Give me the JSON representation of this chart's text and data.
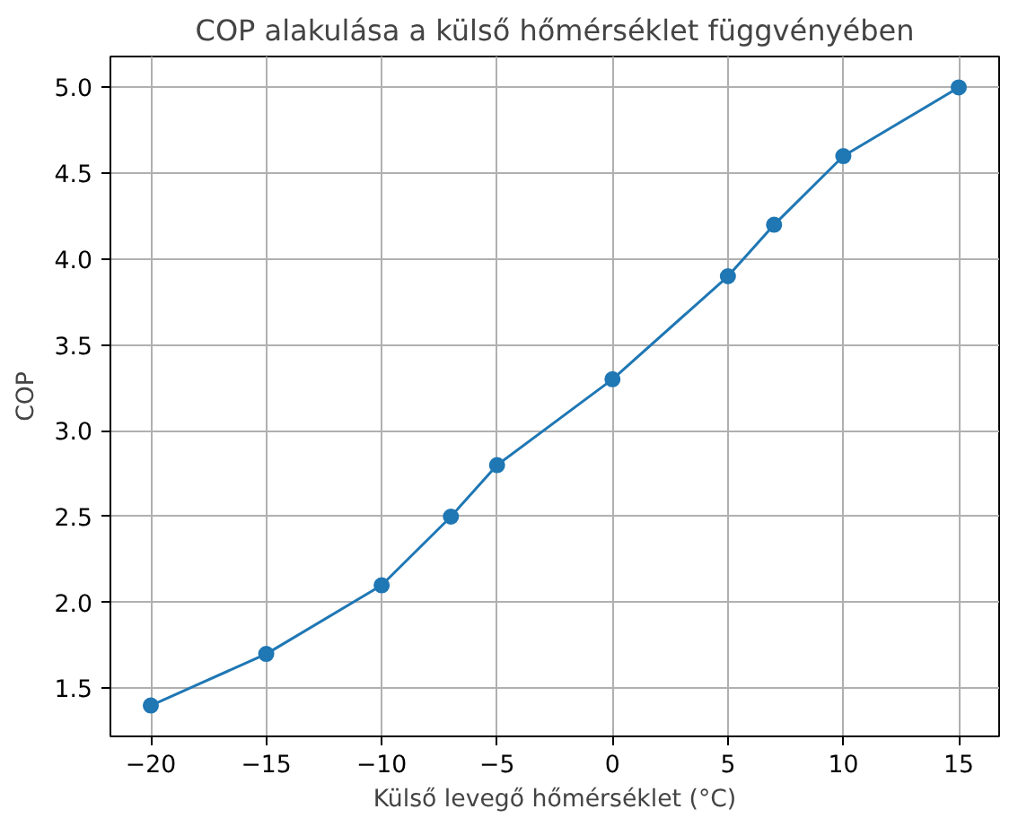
{
  "chart_data": {
    "type": "line",
    "title": "COP alakulása a külső hőmérséklet függvényében",
    "xlabel": "Külső levegő hőmérséklet (°C)",
    "ylabel": "COP",
    "x": [
      -20,
      -15,
      -10,
      -7,
      -5,
      0,
      5,
      7,
      10,
      15
    ],
    "series": [
      {
        "color": "#1f77b4",
        "values": [
          1.4,
          1.7,
          2.1,
          2.5,
          2.8,
          3.3,
          3.9,
          4.2,
          4.6,
          5.0
        ]
      }
    ],
    "xlim": [
      -21.75,
      16.75
    ],
    "ylim": [
      1.22,
      5.18
    ],
    "xticks": [
      {
        "value": -20,
        "label": "−20"
      },
      {
        "value": -15,
        "label": "−15"
      },
      {
        "value": -10,
        "label": "−10"
      },
      {
        "value": -5,
        "label": "−5"
      },
      0,
      5,
      10,
      15
    ],
    "yticks": [
      1.5,
      {
        "value": 2,
        "label": "2.0"
      },
      2.5,
      {
        "value": 3,
        "label": "3.0"
      },
      3.5,
      {
        "value": 4,
        "label": "4.0"
      },
      4.5,
      {
        "value": 5,
        "label": "5.0"
      }
    ],
    "grid": true,
    "marker": "circle",
    "line_style": "solid"
  }
}
